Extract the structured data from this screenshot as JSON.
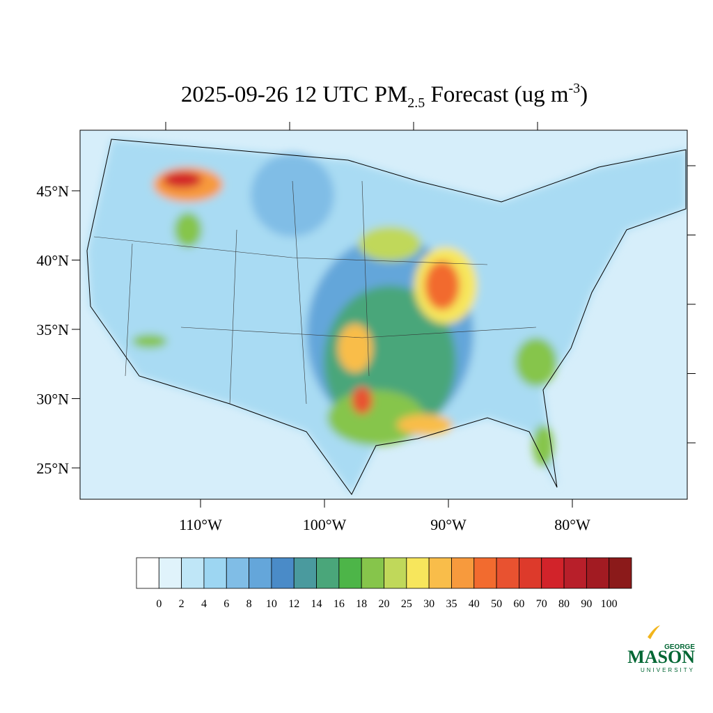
{
  "title": {
    "prefix": "2025-09-26 12 UTC PM",
    "subscript": "2.5",
    "middle": " Forecast (ug m",
    "superscript": "-3",
    "suffix": ")"
  },
  "map": {
    "lat_ticks": [
      {
        "value": 45,
        "label": "45°N"
      },
      {
        "value": 40,
        "label": "40°N"
      },
      {
        "value": 35,
        "label": "35°N"
      },
      {
        "value": 30,
        "label": "30°N"
      },
      {
        "value": 25,
        "label": "25°N"
      }
    ],
    "lon_ticks": [
      {
        "value": -110,
        "label": "110°W"
      },
      {
        "value": -100,
        "label": "100°W"
      },
      {
        "value": -90,
        "label": "90°W"
      },
      {
        "value": -80,
        "label": "80°W"
      }
    ]
  },
  "colorbar": {
    "levels": [
      0,
      2,
      4,
      6,
      8,
      10,
      12,
      14,
      16,
      18,
      20,
      25,
      30,
      35,
      40,
      50,
      60,
      70,
      80,
      90,
      100
    ],
    "colors": [
      "#ffffff",
      "#e0f3fb",
      "#bfe6f7",
      "#9dd6f2",
      "#80bde6",
      "#64a6da",
      "#4a8bc8",
      "#4a9a9e",
      "#4aa67a",
      "#4db548",
      "#86c54b",
      "#c0d85a",
      "#f7e65c",
      "#f9bd4a",
      "#f79a3d",
      "#f26b2f",
      "#e85230",
      "#dd3a2b",
      "#d2232a",
      "#b81f2a",
      "#a21b22",
      "#8b1a1a"
    ]
  },
  "logo": {
    "top": "GEORGE",
    "main": "MASON",
    "bottom": "UNIVERSITY"
  }
}
